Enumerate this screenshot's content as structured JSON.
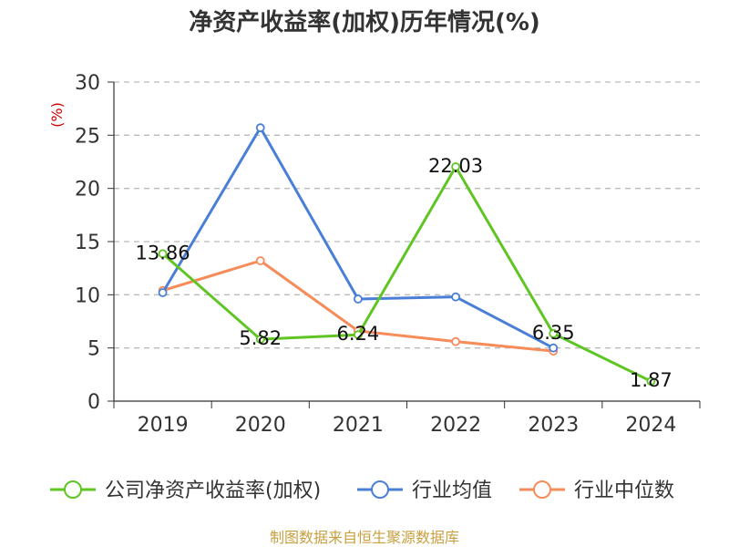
{
  "chart_data": {
    "type": "line",
    "title": "净资产收益率(加权)历年情况(%)",
    "ylabel": "(%)",
    "xlabel": "",
    "categories": [
      "2019",
      "2020",
      "2021",
      "2022",
      "2023",
      "2024"
    ],
    "ylim": [
      0,
      30
    ],
    "yticks": [
      0,
      5,
      10,
      15,
      20,
      25,
      30
    ],
    "grid": true,
    "legend": "bottom",
    "series": [
      {
        "name": "公司净资产收益率(加权)",
        "color": "#5ec522",
        "values": [
          13.86,
          5.82,
          6.24,
          22.03,
          6.35,
          1.87
        ],
        "labels": [
          "13.86",
          "5.82",
          "6.24",
          "22.03",
          "6.35",
          "1.87"
        ]
      },
      {
        "name": "行业均值",
        "color": "#4a7fd8",
        "values": [
          10.2,
          25.7,
          9.6,
          9.8,
          5.0,
          null
        ]
      },
      {
        "name": "行业中位数",
        "color": "#f68c5a",
        "values": [
          10.4,
          13.2,
          6.6,
          5.6,
          4.7,
          null
        ]
      }
    ],
    "source": "制图数据来自恒生聚源数据库"
  }
}
